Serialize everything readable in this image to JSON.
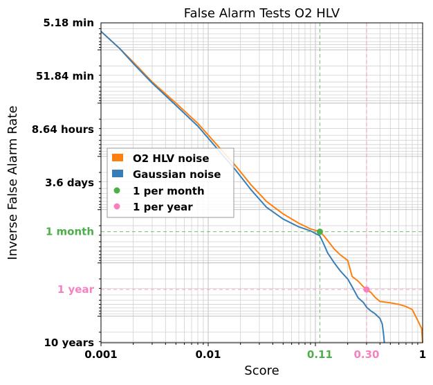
{
  "chart_data": {
    "type": "line",
    "title": "False Alarm Tests O2 HLV",
    "xlabel": "Score",
    "ylabel": "Inverse False Alarm Rate",
    "xscale": "log",
    "yscale": "log",
    "xlim": [
      0.001,
      1
    ],
    "y_unit": "seconds",
    "ylim": [
      311,
      315360000
    ],
    "grid": true,
    "legend_position": "center-left",
    "xticks": [
      {
        "value": 0.001,
        "label": "0.001",
        "color": "#000000"
      },
      {
        "value": 0.01,
        "label": "0.01",
        "color": "#000000"
      },
      {
        "value": 0.11,
        "label": "0.11",
        "color": "#4daf4a"
      },
      {
        "value": 0.3,
        "label": "0.30",
        "color": "#f781bf"
      },
      {
        "value": 1,
        "label": "1",
        "color": "#000000"
      }
    ],
    "yticks": [
      {
        "value": 311,
        "label": "5.18 min",
        "color": "#000000"
      },
      {
        "value": 3110,
        "label": "51.84 min",
        "color": "#000000"
      },
      {
        "value": 31104,
        "label": "8.64 hours",
        "color": "#000000"
      },
      {
        "value": 311040,
        "label": "3.6 days",
        "color": "#000000"
      },
      {
        "value": 2592000,
        "label": "1 month",
        "color": "#4daf4a"
      },
      {
        "value": 31536000,
        "label": "1 year",
        "color": "#f781bf"
      },
      {
        "value": 315360000,
        "label": "10 years",
        "color": "#000000"
      }
    ],
    "series": [
      {
        "name": "O2 HLV noise",
        "color": "#ff7f0e",
        "x": [
          0.001,
          0.0015,
          0.002,
          0.003,
          0.005,
          0.008,
          0.012,
          0.018,
          0.025,
          0.035,
          0.05,
          0.07,
          0.09,
          0.11,
          0.12,
          0.13,
          0.15,
          0.17,
          0.2,
          0.22,
          0.25,
          0.28,
          0.3,
          0.33,
          0.36,
          0.4,
          0.5,
          0.6,
          0.7,
          0.8,
          0.9,
          0.95,
          0.98,
          1.0
        ],
        "y": [
          450,
          950,
          1700,
          4000,
          10000,
          24000,
          60000,
          150000,
          340000,
          700000,
          1200000,
          1800000,
          2300000,
          2592000,
          3100000,
          3800000,
          5500000,
          7000000,
          9000000,
          18000000,
          22000000,
          28000000,
          31536000,
          36000000,
          44000000,
          53000000,
          56000000,
          60000000,
          66000000,
          75000000,
          120000000,
          150000000,
          170000000,
          315360000
        ]
      },
      {
        "name": "Gaussian noise",
        "color": "#377eb8",
        "x": [
          0.001,
          0.0015,
          0.002,
          0.003,
          0.005,
          0.008,
          0.012,
          0.018,
          0.025,
          0.035,
          0.05,
          0.07,
          0.09,
          0.11,
          0.12,
          0.13,
          0.15,
          0.17,
          0.2,
          0.22,
          0.25,
          0.28,
          0.3,
          0.33,
          0.36,
          0.4,
          0.42,
          0.43,
          0.44
        ],
        "y": [
          450,
          950,
          1800,
          4200,
          11000,
          27000,
          70000,
          180000,
          420000,
          900000,
          1500000,
          2100000,
          2500000,
          3100000,
          4500000,
          6500000,
          10000000,
          14000000,
          20000000,
          28000000,
          45000000,
          55000000,
          68000000,
          80000000,
          90000000,
          110000000,
          140000000,
          200000000,
          315360000
        ]
      }
    ],
    "reference_points": [
      {
        "name": "1 per month",
        "x": 0.11,
        "y": 2592000,
        "color": "#4daf4a"
      },
      {
        "name": "1 per year",
        "x": 0.3,
        "y": 31536000,
        "color": "#f781bf"
      }
    ]
  }
}
